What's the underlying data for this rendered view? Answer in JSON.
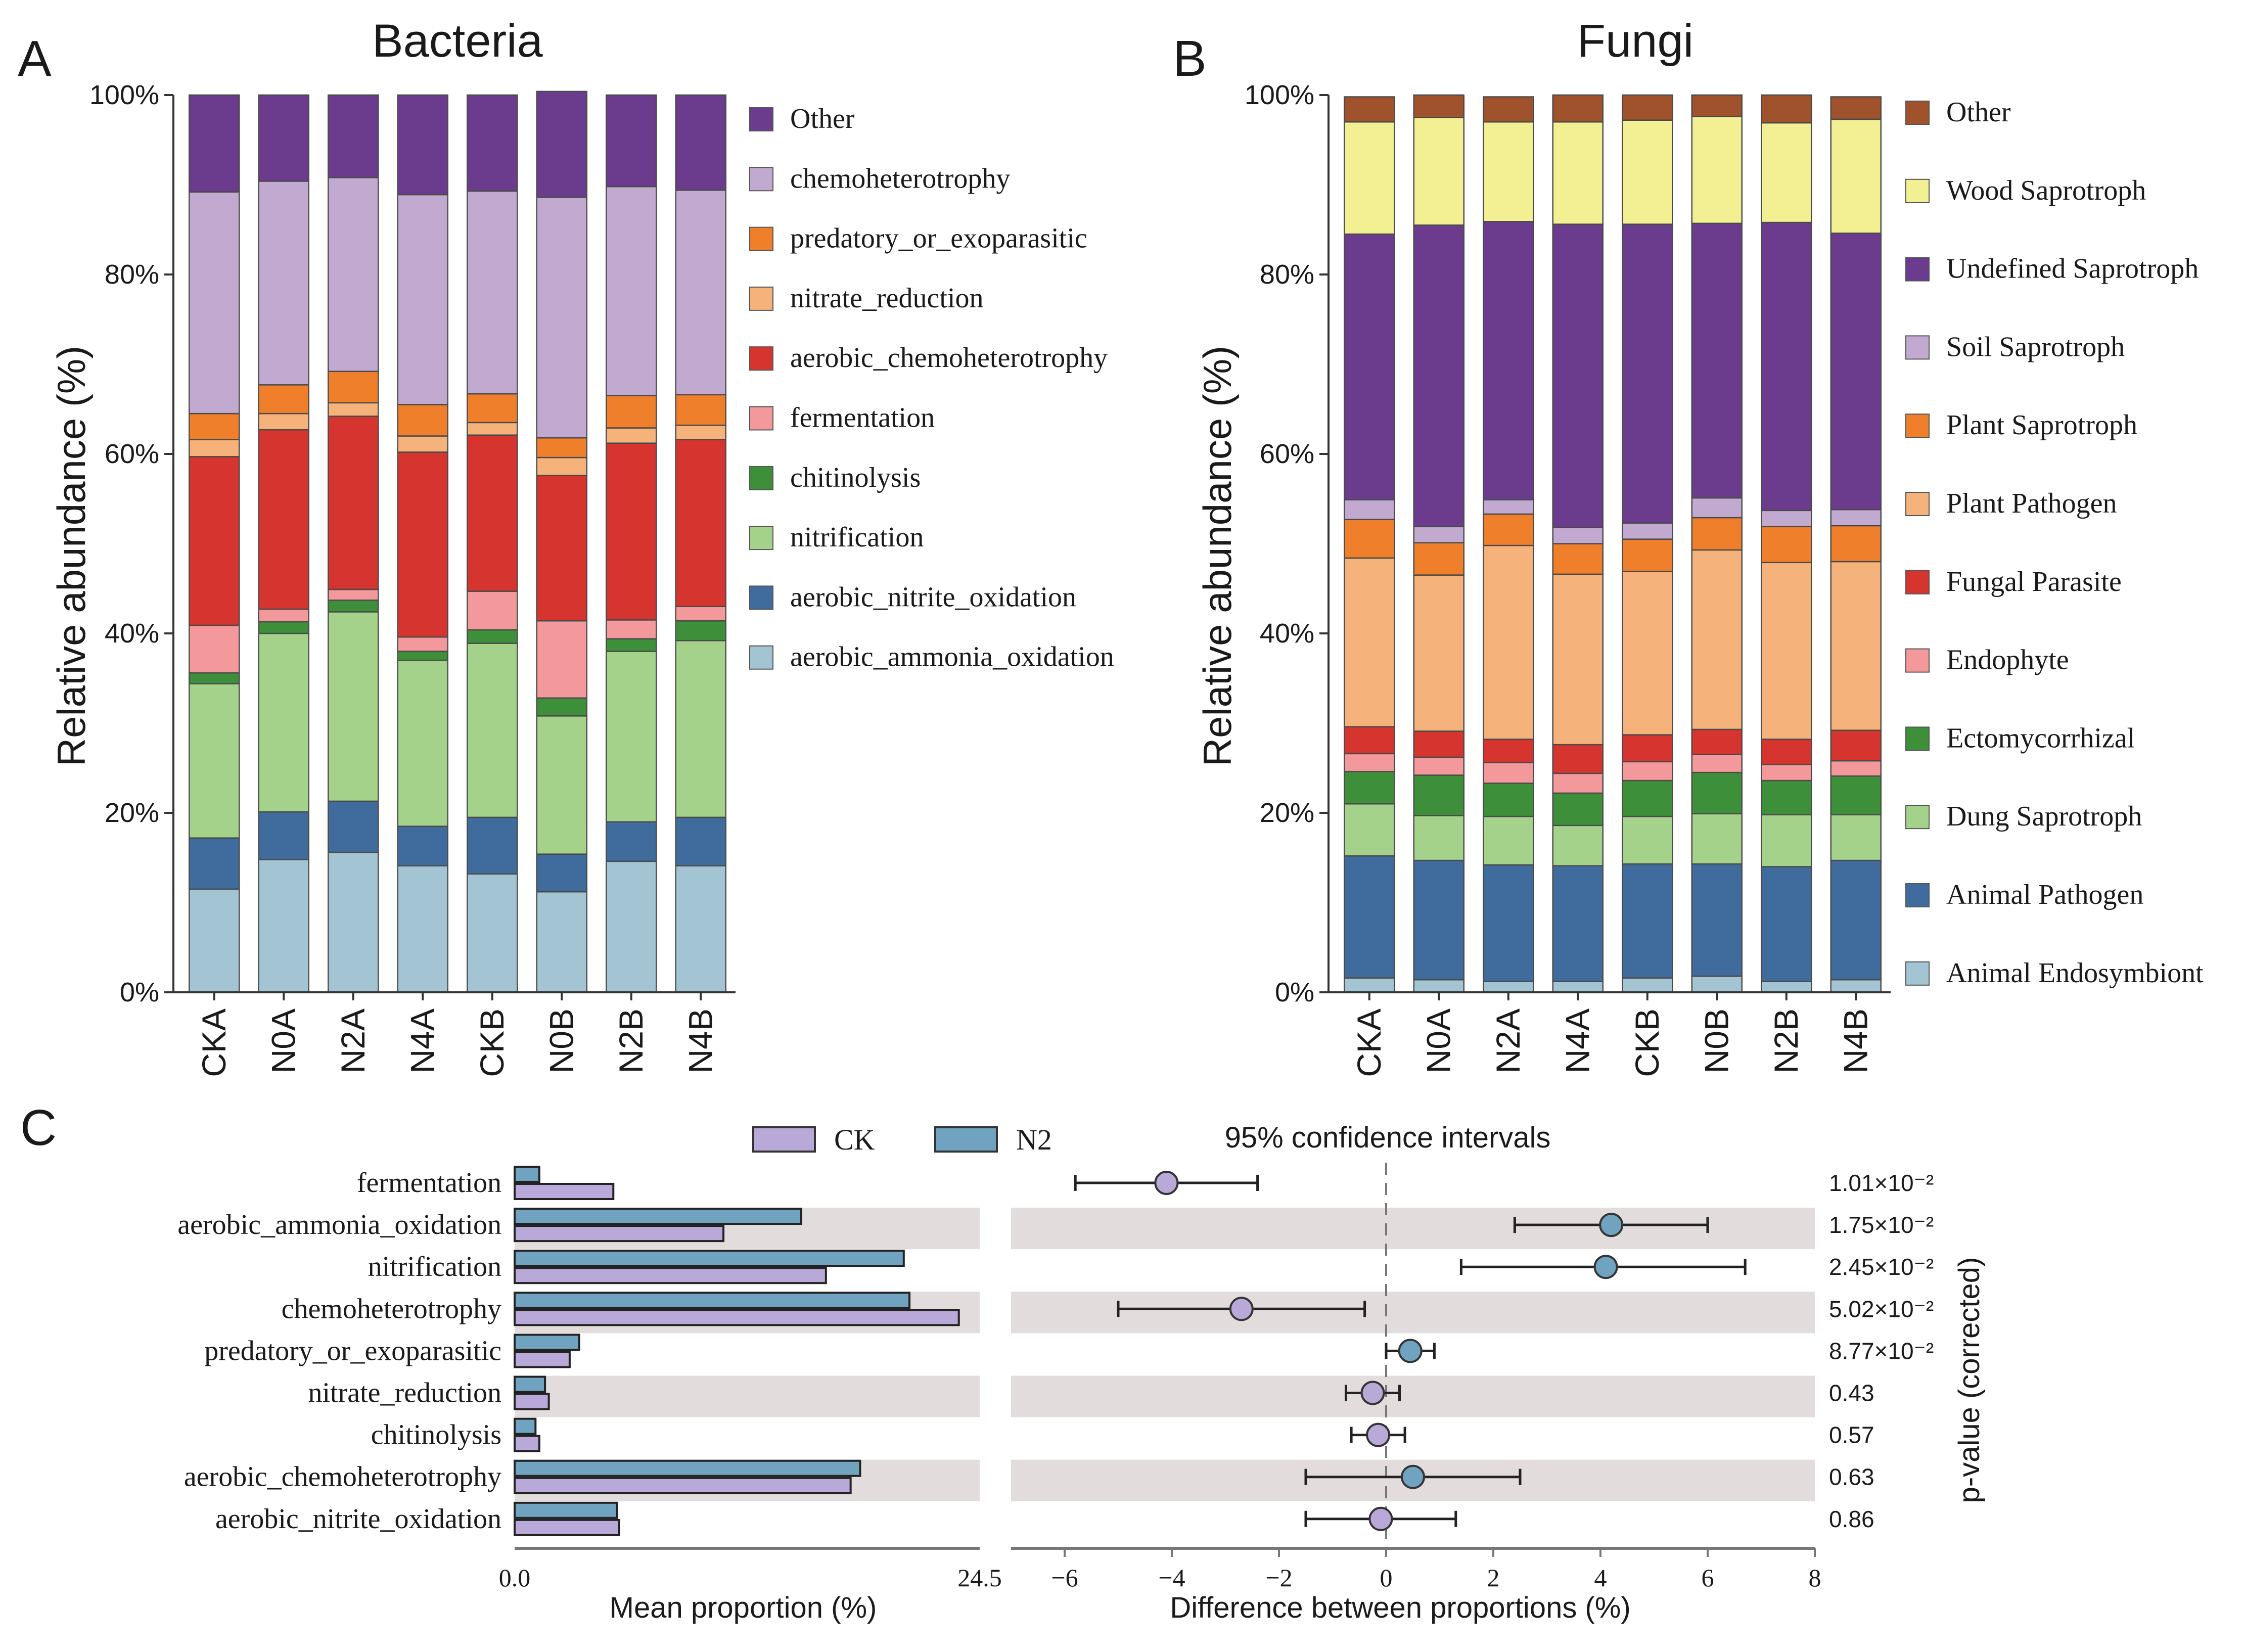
{
  "panel_labels": {
    "a": "A",
    "b": "B",
    "c": "C"
  },
  "chart_data": [
    {
      "type": "bar",
      "stacked": true,
      "title": "Bacteria",
      "xlabel": "",
      "ylabel": "Relative abundance (%)",
      "ylim": [
        0,
        100
      ],
      "yticks": [
        "0%",
        "20%",
        "40%",
        "60%",
        "80%",
        "100%"
      ],
      "categories": [
        "CKA",
        "N0A",
        "N2A",
        "N4A",
        "CKB",
        "N0B",
        "N2B",
        "N4B"
      ],
      "series": [
        {
          "name": "aerobic_ammonia_oxidation",
          "color": "#a3c4d3",
          "values": [
            11.5,
            14.8,
            15.6,
            14.1,
            13.2,
            11.2,
            14.6,
            14.1
          ]
        },
        {
          "name": "aerobic_nitrite_oxidation",
          "color": "#3f6c9c",
          "values": [
            5.7,
            5.3,
            5.7,
            4.4,
            6.3,
            4.2,
            4.4,
            5.4
          ]
        },
        {
          "name": "nitrification",
          "color": "#a4d28b",
          "values": [
            17.2,
            19.9,
            21.1,
            18.5,
            19.4,
            15.4,
            19.0,
            19.7
          ]
        },
        {
          "name": "chitinolysis",
          "color": "#3e8f3a",
          "values": [
            1.2,
            1.3,
            1.3,
            1.0,
            1.5,
            2.0,
            1.4,
            2.2
          ]
        },
        {
          "name": "fermentation",
          "color": "#f4999b",
          "values": [
            5.3,
            1.4,
            1.2,
            1.6,
            4.3,
            8.6,
            2.1,
            1.6
          ]
        },
        {
          "name": "aerobic_chemoheterotrophy",
          "color": "#d6342e",
          "values": [
            18.8,
            20.0,
            19.3,
            20.6,
            17.4,
            16.2,
            19.7,
            18.6
          ]
        },
        {
          "name": "nitrate_reduction",
          "color": "#f5b27a",
          "values": [
            1.9,
            1.8,
            1.5,
            1.8,
            1.4,
            2.0,
            1.7,
            1.6
          ]
        },
        {
          "name": "predatory_or_exoparasitic",
          "color": "#f07f2b",
          "values": [
            2.9,
            3.2,
            3.5,
            3.5,
            3.2,
            2.2,
            3.6,
            3.4
          ]
        },
        {
          "name": "chemoheterotrophy",
          "color": "#c1a9d0",
          "values": [
            24.7,
            22.7,
            21.6,
            23.4,
            22.6,
            26.8,
            23.3,
            22.8
          ]
        },
        {
          "name": "Other",
          "color": "#6b3b8e",
          "values": [
            10.8,
            9.6,
            9.2,
            11.1,
            10.7,
            11.8,
            10.2,
            10.6
          ]
        }
      ]
    },
    {
      "type": "bar",
      "stacked": true,
      "title": "Fungi",
      "xlabel": "",
      "ylabel": "Relative abundance (%)",
      "ylim": [
        0,
        100
      ],
      "yticks": [
        "0%",
        "20%",
        "40%",
        "60%",
        "80%",
        "100%"
      ],
      "categories": [
        "CKA",
        "N0A",
        "N2A",
        "N4A",
        "CKB",
        "N0B",
        "N2B",
        "N4B"
      ],
      "series": [
        {
          "name": "Animal Endosymbiont",
          "color": "#a3c4d3",
          "values": [
            1.6,
            1.4,
            1.2,
            1.2,
            1.6,
            1.8,
            1.2,
            1.4
          ]
        },
        {
          "name": "Animal Pathogen",
          "color": "#3f6c9c",
          "values": [
            13.6,
            13.3,
            13.0,
            12.9,
            12.7,
            12.5,
            12.8,
            13.3
          ]
        },
        {
          "name": "Dung Saprotroph",
          "color": "#a4d28b",
          "values": [
            5.8,
            5.0,
            5.4,
            4.5,
            5.3,
            5.6,
            5.8,
            5.1
          ]
        },
        {
          "name": "Ectomycorrhizal",
          "color": "#3e8f3a",
          "values": [
            3.6,
            4.5,
            3.7,
            3.6,
            4.0,
            4.6,
            3.8,
            4.3
          ]
        },
        {
          "name": "Endophyte",
          "color": "#f4999b",
          "values": [
            2.0,
            2.0,
            2.3,
            2.2,
            2.1,
            2.0,
            1.8,
            1.7
          ]
        },
        {
          "name": "Fungal Parasite",
          "color": "#d6342e",
          "values": [
            3.0,
            2.9,
            2.6,
            3.2,
            3.0,
            2.8,
            2.8,
            3.4
          ]
        },
        {
          "name": "Plant Pathogen",
          "color": "#f5b27a",
          "values": [
            18.8,
            17.4,
            21.6,
            19.0,
            18.2,
            20.0,
            19.7,
            18.8
          ]
        },
        {
          "name": "Plant Saprotroph",
          "color": "#f07f2b",
          "values": [
            4.3,
            3.6,
            3.5,
            3.4,
            3.6,
            3.6,
            4.0,
            4.0
          ]
        },
        {
          "name": "Soil Saprotroph",
          "color": "#c1a9d0",
          "values": [
            2.2,
            1.8,
            1.6,
            1.8,
            1.8,
            2.2,
            1.8,
            1.8
          ]
        },
        {
          "name": "Undefined Saprotroph",
          "color": "#6b3b8e",
          "values": [
            29.6,
            33.6,
            31.0,
            33.8,
            33.3,
            30.6,
            32.1,
            30.8
          ]
        },
        {
          "name": "Wood Saprotroph",
          "color": "#f2f093",
          "values": [
            12.5,
            12.0,
            11.1,
            11.4,
            11.6,
            11.9,
            11.1,
            12.7
          ]
        },
        {
          "name": "Other",
          "color": "#a0522d",
          "values": [
            2.8,
            2.5,
            2.8,
            3.0,
            2.8,
            2.4,
            3.1,
            2.5
          ]
        }
      ]
    },
    {
      "type": "bar",
      "orientation": "horizontal",
      "subtype": "extended_error_bar",
      "title": "",
      "xlabel": "Mean proportion (%)",
      "xlim": [
        0.0,
        24.5
      ],
      "xtick_labels": [
        "0.0",
        "24.5"
      ],
      "categories": [
        "fermentation",
        "aerobic_ammonia_oxidation",
        "nitrification",
        "chemoheterotrophy",
        "predatory_or_exoparasitic",
        "nitrate_reduction",
        "chitinolysis",
        "aerobic_chemoheterotrophy",
        "aerobic_nitrite_oxidation"
      ],
      "series": [
        {
          "name": "CK",
          "color": "#b8a9d8",
          "values": [
            5.2,
            11.0,
            16.4,
            23.4,
            2.9,
            1.8,
            1.3,
            17.7,
            5.5
          ]
        },
        {
          "name": "N2",
          "color": "#6fa3c0",
          "values": [
            1.3,
            15.1,
            20.5,
            20.8,
            3.4,
            1.6,
            1.1,
            18.2,
            5.4
          ]
        }
      ]
    },
    {
      "type": "scatter",
      "subtype": "confidence_intervals",
      "title": "95% confidence intervals",
      "xlabel": "Difference between proportions (%)",
      "ylabel": "p-value (corrected)",
      "xlim": [
        -7,
        8
      ],
      "xticks": [
        -6,
        -4,
        -2,
        0,
        2,
        4,
        6,
        8
      ],
      "xtick_labels": [
        "−6",
        "−4",
        "−2",
        "0",
        "2",
        "4",
        "6",
        "8"
      ],
      "categories": [
        "fermentation",
        "aerobic_ammonia_oxidation",
        "nitrification",
        "chemoheterotrophy",
        "predatory_or_exoparasitic",
        "nitrate_reduction",
        "chitinolysis",
        "aerobic_chemoheterotrophy",
        "aerobic_nitrite_oxidation"
      ],
      "difference": [
        -4.1,
        4.2,
        4.1,
        -2.7,
        0.45,
        -0.25,
        -0.15,
        0.5,
        -0.1
      ],
      "ci_low": [
        -5.8,
        2.4,
        1.4,
        -5.0,
        0.0,
        -0.75,
        -0.65,
        -1.5,
        -1.5
      ],
      "ci_high": [
        -2.4,
        6.0,
        6.7,
        -0.4,
        0.9,
        0.25,
        0.35,
        2.5,
        1.3
      ],
      "point_group": [
        "CK",
        "N2",
        "N2",
        "CK",
        "N2",
        "CK",
        "CK",
        "N2",
        "CK"
      ],
      "p_values": [
        "1.01×10⁻²",
        "1.75×10⁻²",
        "2.45×10⁻²",
        "5.02×10⁻²",
        "8.77×10⁻²",
        "0.43",
        "0.57",
        "0.63",
        "0.86"
      ]
    }
  ]
}
